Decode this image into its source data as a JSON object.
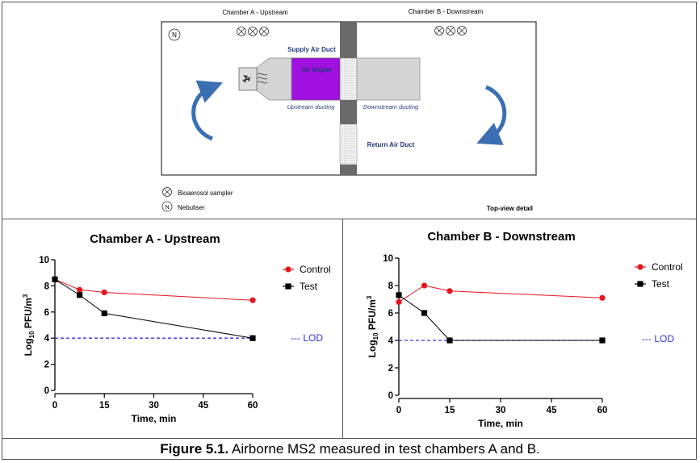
{
  "diagram": {
    "chamber_a_label": "Chamber A - Upstream",
    "chamber_b_label": "Chamber B - Downstream",
    "supply_air_duct": "Supply Air Duct",
    "air_sniper": "Air Sniper",
    "upstream_ducting": "Upstream ducting",
    "downstream_ducting": "Downstream ducting",
    "return_air_duct": "Return Air Duct",
    "nebuliser_symbol": "N",
    "legend_sampler": "Bioaerosol sampler",
    "legend_nebuliser": "Nebuliser",
    "top_view": "Top-view detail"
  },
  "caption": {
    "bold": "Figure 5.1.",
    "text": " Airborne MS2 measured in test chambers A and B."
  },
  "colors": {
    "control": "#e8141c",
    "test": "#000000",
    "lod": "#3333dd",
    "air_sniper": "#a010e0"
  },
  "chart_data": [
    {
      "type": "line",
      "title": "Chamber A - Upstream",
      "xlabel": "Time, min",
      "ylabel_main": "Log",
      "ylabel_sub": "10",
      "ylabel_rest": " PFU/m",
      "ylabel_sup": "3",
      "xticks": [
        "0",
        "15",
        "30",
        "45",
        "60"
      ],
      "yticks": [
        "0",
        "2",
        "4",
        "6",
        "8",
        "10"
      ],
      "xlim": [
        0,
        60
      ],
      "ylim": [
        0,
        10
      ],
      "series": [
        {
          "name": "Control",
          "x": [
            0,
            7.5,
            15,
            60
          ],
          "y": [
            8.5,
            7.7,
            7.5,
            6.9
          ]
        },
        {
          "name": "Test",
          "x": [
            0,
            7.5,
            15,
            60
          ],
          "y": [
            8.5,
            7.3,
            5.9,
            4.0
          ]
        }
      ],
      "lod": {
        "label": "--- LOD",
        "value": 4
      }
    },
    {
      "type": "line",
      "title": "Chamber B - Downstream",
      "xlabel": "Time, min",
      "ylabel_main": "Log",
      "ylabel_sub": "10",
      "ylabel_rest": " PFU/m",
      "ylabel_sup": "3",
      "xticks": [
        "0",
        "15",
        "30",
        "45",
        "60"
      ],
      "yticks": [
        "0",
        "2",
        "4",
        "6",
        "8",
        "10"
      ],
      "xlim": [
        0,
        60
      ],
      "ylim": [
        0,
        10
      ],
      "series": [
        {
          "name": "Control",
          "x": [
            0,
            7.5,
            15,
            60
          ],
          "y": [
            6.8,
            8.0,
            7.6,
            7.1
          ]
        },
        {
          "name": "Test",
          "x": [
            0,
            7.5,
            15,
            60
          ],
          "y": [
            7.3,
            6.0,
            4.0,
            4.0
          ]
        }
      ],
      "lod": {
        "label": "--- LOD",
        "value": 4
      }
    }
  ]
}
